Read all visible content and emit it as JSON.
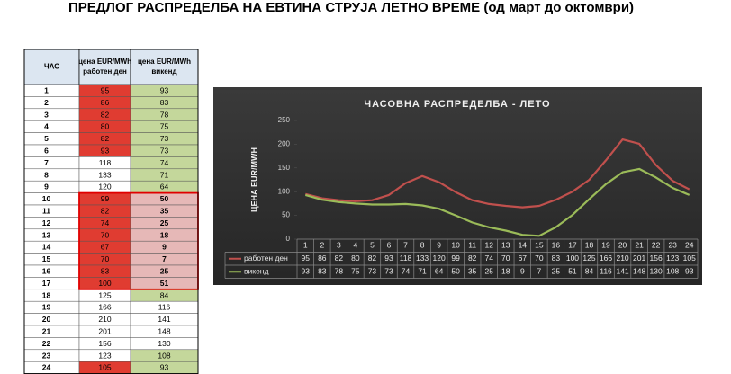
{
  "title": "ПРЕДЛОГ РАСПРЕДЕЛБА НА ЕВТИНА СТРУЈА ЛЕТНО ВРЕМЕ (од март до октомври)",
  "table": {
    "headers": [
      [
        "ЧАС"
      ],
      [
        "цена EUR/MWh",
        "работен ден"
      ],
      [
        "цена EUR/MWh",
        "викенд"
      ]
    ],
    "rows": [
      [
        1,
        95,
        93
      ],
      [
        2,
        86,
        83
      ],
      [
        3,
        82,
        78
      ],
      [
        4,
        80,
        75
      ],
      [
        5,
        82,
        73
      ],
      [
        6,
        93,
        73
      ],
      [
        7,
        118,
        74
      ],
      [
        8,
        133,
        71
      ],
      [
        9,
        120,
        64
      ],
      [
        10,
        99,
        50
      ],
      [
        11,
        82,
        35
      ],
      [
        12,
        74,
        25
      ],
      [
        13,
        70,
        18
      ],
      [
        14,
        67,
        9
      ],
      [
        15,
        70,
        7
      ],
      [
        16,
        83,
        25
      ],
      [
        17,
        100,
        51
      ],
      [
        18,
        125,
        84
      ],
      [
        19,
        166,
        116
      ],
      [
        20,
        210,
        141
      ],
      [
        21,
        201,
        148
      ],
      [
        22,
        156,
        130
      ],
      [
        23,
        123,
        108
      ],
      [
        24,
        105,
        93
      ]
    ],
    "fills": [
      [
        "#e03c31",
        "#c4d79b"
      ],
      [
        "#e03c31",
        "#c4d79b"
      ],
      [
        "#e03c31",
        "#c4d79b"
      ],
      [
        "#e03c31",
        "#c4d79b"
      ],
      [
        "#e03c31",
        "#c4d79b"
      ],
      [
        "#e03c31",
        "#c4d79b"
      ],
      [
        "#ffffff",
        "#c4d79b"
      ],
      [
        "#ffffff",
        "#c4d79b"
      ],
      [
        "#ffffff",
        "#c4d79b"
      ],
      [
        "#e03c31",
        "#e6b8b7"
      ],
      [
        "#e03c31",
        "#e6b8b7"
      ],
      [
        "#e03c31",
        "#e6b8b7"
      ],
      [
        "#e03c31",
        "#e6b8b7"
      ],
      [
        "#e03c31",
        "#e6b8b7"
      ],
      [
        "#e03c31",
        "#e6b8b7"
      ],
      [
        "#e03c31",
        "#e6b8b7"
      ],
      [
        "#e03c31",
        "#e6b8b7"
      ],
      [
        "#ffffff",
        "#c4d79b"
      ],
      [
        "#ffffff",
        "#ffffff"
      ],
      [
        "#ffffff",
        "#ffffff"
      ],
      [
        "#ffffff",
        "#ffffff"
      ],
      [
        "#ffffff",
        "#ffffff"
      ],
      [
        "#ffffff",
        "#c4d79b"
      ],
      [
        "#e03c31",
        "#c4d79b"
      ]
    ]
  },
  "chart_data": {
    "type": "line",
    "title": "ЧАСОВНА РАСПРЕДЕЛБА - ЛЕТО",
    "y_label": "ЦЕНА EUR/MWH",
    "categories": [
      1,
      2,
      3,
      4,
      5,
      6,
      7,
      8,
      9,
      10,
      11,
      12,
      13,
      14,
      15,
      16,
      17,
      18,
      19,
      20,
      21,
      22,
      23,
      24
    ],
    "series": [
      {
        "name": "работен ден",
        "color": "#c0504d",
        "values": [
          95,
          86,
          82,
          80,
          82,
          93,
          118,
          133,
          120,
          99,
          82,
          74,
          70,
          67,
          70,
          83,
          100,
          125,
          166,
          210,
          201,
          156,
          123,
          105
        ]
      },
      {
        "name": "викенд",
        "color": "#9bbb59",
        "values": [
          93,
          83,
          78,
          75,
          73,
          73,
          74,
          71,
          64,
          50,
          35,
          25,
          18,
          9,
          7,
          25,
          51,
          84,
          116,
          141,
          148,
          130,
          108,
          93
        ]
      }
    ],
    "ylim": [
      0,
      250
    ],
    "yticks": [
      0,
      50,
      100,
      150,
      200,
      250
    ]
  }
}
